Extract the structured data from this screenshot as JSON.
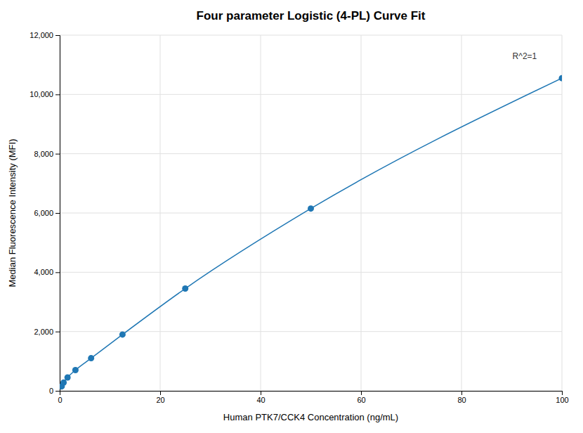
{
  "chart_data": {
    "type": "line",
    "title": "Four parameter Logistic (4-PL) Curve Fit",
    "xlabel": "Human PTK7/CCK4 Concentration (ng/mL)",
    "ylabel": "Median Fluorescence Intensity (MFI)",
    "x": [
      0.4,
      0.78,
      1.56,
      3.13,
      6.25,
      12.5,
      25,
      50,
      100
    ],
    "values": [
      150,
      280,
      450,
      700,
      1100,
      1900,
      3450,
      6150,
      10550
    ],
    "marker": "circle",
    "line_style": "solid",
    "xlim": [
      0,
      100
    ],
    "ylim": [
      0,
      12000
    ],
    "xticks": [
      0,
      20,
      40,
      60,
      80,
      100
    ],
    "yticks": [
      0,
      {
        "value": 2000,
        "label": "2,000"
      },
      {
        "value": 4000,
        "label": "4,000"
      },
      {
        "value": 6000,
        "label": "6,000"
      },
      {
        "value": 8000,
        "label": "8,000"
      },
      {
        "value": 10000,
        "label": "10,000"
      },
      {
        "value": 12000,
        "label": "12,000"
      }
    ],
    "grid": true,
    "annotations": [
      {
        "text": "R^2=1",
        "x": 95,
        "y": 11200
      }
    ]
  }
}
